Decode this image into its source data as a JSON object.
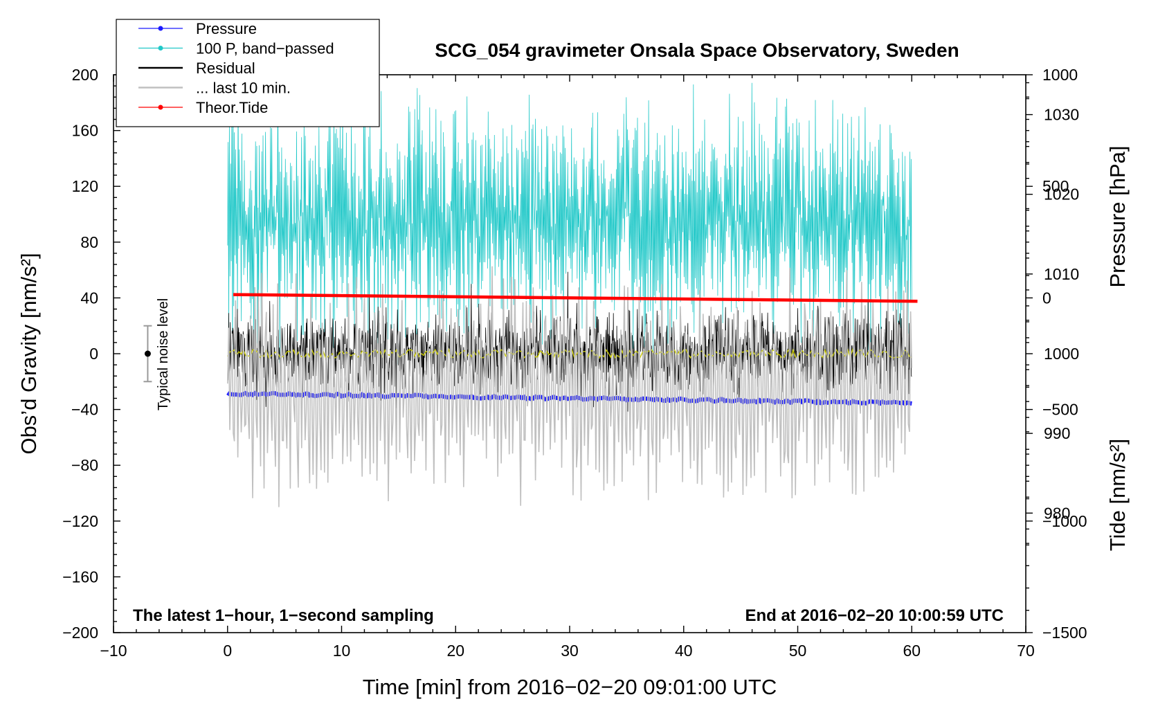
{
  "chart_data": {
    "type": "line",
    "title": "SCG_054 gravimeter Onsala Space Observatory, Sweden",
    "xlabel": "Time [min] from 2016−02−20 09:01:00 UTC",
    "ylabel_left": "Obs’d Gravity [nm/s²]",
    "ylabel_right_top": "Pressure [hPa]",
    "ylabel_right_bottom": "Tide [nm/s²]",
    "xlim": [
      -10,
      70
    ],
    "ylim": [
      -200,
      200
    ],
    "pressure_ylim": [
      965,
      1035
    ],
    "tide_ylim": [
      -1500,
      1000
    ],
    "x_ticks": [
      "−10",
      "0",
      "10",
      "20",
      "30",
      "40",
      "50",
      "60",
      "70"
    ],
    "y_ticks": [
      "200",
      "160",
      "120",
      "80",
      "40",
      "0",
      "−40",
      "−80",
      "−120",
      "−160",
      "−200"
    ],
    "pressure_ticks": [
      "1030",
      "1020",
      "1010",
      "1000",
      "990",
      "980"
    ],
    "tide_ticks": [
      "1000",
      "500",
      "0",
      "−500",
      "−1000",
      "−1500"
    ],
    "legend": [
      {
        "label": "Pressure",
        "color": "#1a1aff",
        "marker": true
      },
      {
        "label": "100 P, band−passed",
        "color": "#20c8c8",
        "marker": true
      },
      {
        "label": "Residual",
        "color": "#000000",
        "marker": false
      },
      {
        "label": "... last 10 min.",
        "color": "#c0c0c0",
        "marker": false
      },
      {
        "label": "Theor.Tide",
        "color": "#ff0000",
        "marker": true
      }
    ],
    "series": [
      {
        "name": "Pressure",
        "axis": "pressure",
        "color": "#1a1aff",
        "x_range": [
          0,
          60
        ],
        "start": 995,
        "end": 993.8,
        "unit": "hPa"
      },
      {
        "name": "100 P, band−passed",
        "axis": "gravity",
        "color": "#20c8c8",
        "x_range": [
          0,
          60
        ],
        "center": 95,
        "amplitude": 100,
        "unit": "nm/s²"
      },
      {
        "name": "Residual",
        "axis": "gravity",
        "color": "#000000",
        "x_range": [
          0,
          60
        ],
        "center": 0,
        "amplitude": 50,
        "unit": "nm/s²"
      },
      {
        "name": "... last 10 min.",
        "axis": "tide",
        "color": "#c0c0c0",
        "x_range": [
          0,
          60
        ],
        "center": -400,
        "amplitude": 650,
        "unit": "nm/s²"
      },
      {
        "name": "Theor.Tide",
        "axis": "tide",
        "color": "#ff0000",
        "x_range": [
          0.5,
          60.5
        ],
        "start": 15,
        "end": -15,
        "unit": "nm/s²"
      },
      {
        "name": "Smoothed residual",
        "axis": "gravity",
        "color": "#c8c800",
        "x_range": [
          0,
          60
        ],
        "center": 0,
        "amplitude": 3,
        "unit": "nm/s²"
      }
    ],
    "noise_bar": {
      "label": "Typical noise level",
      "x": -7,
      "y_low": -20,
      "y_center": 0,
      "y_high": 20
    },
    "annotations": {
      "bottom_left": "The latest 1−hour, 1−second sampling",
      "bottom_right": "End at 2016−02−20 10:00:59 UTC"
    }
  }
}
